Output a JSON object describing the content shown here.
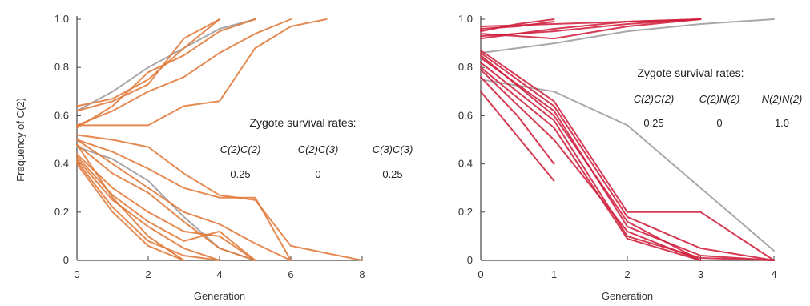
{
  "chart_data": [
    {
      "type": "line",
      "xlabel": "Generation",
      "ylabel": "Frequency of C(2)",
      "xlim": [
        0,
        8
      ],
      "ylim": [
        0,
        1.0
      ],
      "xticks": [
        "0",
        "2",
        "4",
        "6",
        "8"
      ],
      "yticks": [
        "0",
        "0.2",
        "0.4",
        "0.6",
        "0.8",
        "1.0"
      ],
      "colors": {
        "series": "#e07a3a",
        "reference": "#a8a8a8"
      },
      "annotation": {
        "title": "Zygote survival rates:",
        "columns": [
          {
            "label": "C(2)C(2)",
            "value": "0.25"
          },
          {
            "label": "C(2)C(3)",
            "value": "0"
          },
          {
            "label": "C(3)C(3)",
            "value": "0.25"
          }
        ]
      },
      "series": [
        {
          "style": "reference",
          "x": [
            0,
            1,
            2,
            3,
            4,
            5
          ],
          "y": [
            0.62,
            0.7,
            0.8,
            0.88,
            0.96,
            1.0
          ]
        },
        {
          "style": "reference",
          "x": [
            0,
            1,
            2,
            3,
            4,
            5
          ],
          "y": [
            0.47,
            0.42,
            0.33,
            0.18,
            0.05,
            0.0
          ]
        },
        {
          "style": "data",
          "x": [
            0,
            1,
            2,
            3,
            4
          ],
          "y": [
            0.62,
            0.66,
            0.73,
            0.92,
            1.0
          ]
        },
        {
          "style": "data",
          "x": [
            0,
            1,
            2,
            3,
            4
          ],
          "y": [
            0.64,
            0.67,
            0.75,
            0.88,
            1.0
          ]
        },
        {
          "style": "data",
          "x": [
            0,
            1,
            2,
            3,
            4,
            5
          ],
          "y": [
            0.55,
            0.64,
            0.78,
            0.85,
            0.95,
            1.0
          ]
        },
        {
          "style": "data",
          "x": [
            0,
            1,
            2,
            3,
            4,
            5,
            6
          ],
          "y": [
            0.56,
            0.62,
            0.7,
            0.76,
            0.86,
            0.94,
            1.0
          ]
        },
        {
          "style": "data",
          "x": [
            0,
            1,
            2,
            3,
            4,
            5,
            6,
            7
          ],
          "y": [
            0.56,
            0.56,
            0.56,
            0.64,
            0.66,
            0.88,
            0.97,
            1.0
          ]
        },
        {
          "style": "data",
          "x": [
            0,
            1,
            2,
            3,
            4,
            5,
            6,
            7,
            8
          ],
          "y": [
            0.52,
            0.5,
            0.47,
            0.36,
            0.27,
            0.25,
            0.06,
            0.03,
            0.0
          ]
        },
        {
          "style": "data",
          "x": [
            0,
            1,
            2,
            3,
            4,
            5,
            6
          ],
          "y": [
            0.5,
            0.45,
            0.38,
            0.3,
            0.26,
            0.26,
            0.0
          ]
        },
        {
          "style": "data",
          "x": [
            0,
            1,
            2,
            3,
            4,
            5,
            6
          ],
          "y": [
            0.5,
            0.4,
            0.3,
            0.2,
            0.15,
            0.07,
            0.0
          ]
        },
        {
          "style": "data",
          "x": [
            0,
            1,
            2,
            3,
            4,
            5
          ],
          "y": [
            0.48,
            0.36,
            0.28,
            0.16,
            0.05,
            0.0
          ]
        },
        {
          "style": "data",
          "x": [
            0,
            1,
            2,
            3,
            4,
            5
          ],
          "y": [
            0.44,
            0.3,
            0.2,
            0.12,
            0.1,
            0.0
          ]
        },
        {
          "style": "data",
          "x": [
            0,
            1,
            2,
            3,
            4,
            5
          ],
          "y": [
            0.43,
            0.27,
            0.16,
            0.08,
            0.12,
            0.0
          ]
        },
        {
          "style": "data",
          "x": [
            0,
            1,
            2,
            3,
            4
          ],
          "y": [
            0.42,
            0.25,
            0.14,
            0.05,
            0.0
          ]
        },
        {
          "style": "data",
          "x": [
            0,
            1,
            2,
            3,
            4
          ],
          "y": [
            0.41,
            0.22,
            0.08,
            0.02,
            0.0
          ]
        },
        {
          "style": "data",
          "x": [
            0,
            1,
            2,
            3
          ],
          "y": [
            0.4,
            0.2,
            0.06,
            0.0
          ]
        },
        {
          "style": "data",
          "x": [
            0,
            1,
            2,
            3
          ],
          "y": [
            0.48,
            0.26,
            0.1,
            0.0
          ]
        }
      ]
    },
    {
      "type": "line",
      "xlabel": "Generation",
      "ylabel": "",
      "xlim": [
        0,
        4
      ],
      "ylim": [
        0,
        1.0
      ],
      "xticks": [
        "0",
        "1",
        "2",
        "3",
        "4"
      ],
      "yticks": [
        "0",
        "0.2",
        "0.4",
        "0.6",
        "0.8",
        "1.0"
      ],
      "colors": {
        "series": "#d0203e",
        "reference": "#a8a8a8"
      },
      "annotation": {
        "title": "Zygote survival rates:",
        "columns": [
          {
            "label": "C(2)C(2)",
            "value": "0.25"
          },
          {
            "label": "C(2)N(2)",
            "value": "0"
          },
          {
            "label": "N(2)N(2)",
            "value": "1.0"
          }
        ]
      },
      "series": [
        {
          "style": "reference",
          "x": [
            0,
            1,
            2,
            3,
            4
          ],
          "y": [
            0.86,
            0.9,
            0.95,
            0.98,
            1.0
          ]
        },
        {
          "style": "reference",
          "x": [
            0,
            1,
            2,
            3,
            4
          ],
          "y": [
            0.75,
            0.7,
            0.56,
            0.3,
            0.04
          ]
        },
        {
          "style": "data",
          "x": [
            0,
            0.5,
            1
          ],
          "y": [
            0.95,
            0.98,
            1.0
          ]
        },
        {
          "style": "data",
          "x": [
            0,
            0.5,
            1
          ],
          "y": [
            0.96,
            0.97,
            0.99
          ]
        },
        {
          "style": "data",
          "x": [
            0,
            1,
            2,
            3
          ],
          "y": [
            0.93,
            0.95,
            0.98,
            1.0
          ]
        },
        {
          "style": "data",
          "x": [
            0,
            1,
            2,
            3
          ],
          "y": [
            0.92,
            0.96,
            0.99,
            1.0
          ]
        },
        {
          "style": "data",
          "x": [
            0,
            1,
            2,
            3
          ],
          "y": [
            0.94,
            0.92,
            0.97,
            1.0
          ]
        },
        {
          "style": "data",
          "x": [
            0,
            1,
            2,
            3
          ],
          "y": [
            0.97,
            0.98,
            0.99,
            1.0
          ]
        },
        {
          "style": "data",
          "x": [
            0,
            1,
            2,
            3,
            4
          ],
          "y": [
            0.87,
            0.66,
            0.2,
            0.2,
            0.0
          ]
        },
        {
          "style": "data",
          "x": [
            0,
            1,
            2,
            3,
            4
          ],
          "y": [
            0.86,
            0.64,
            0.18,
            0.05,
            0.0
          ]
        },
        {
          "style": "data",
          "x": [
            0,
            1,
            2,
            3,
            4
          ],
          "y": [
            0.84,
            0.62,
            0.14,
            0.02,
            0.0
          ]
        },
        {
          "style": "data",
          "x": [
            0,
            1,
            2,
            3,
            4
          ],
          "y": [
            0.82,
            0.58,
            0.1,
            0.01,
            0.0
          ]
        },
        {
          "style": "data",
          "x": [
            0,
            1,
            2,
            3
          ],
          "y": [
            0.8,
            0.55,
            0.09,
            0.0
          ]
        },
        {
          "style": "data",
          "x": [
            0,
            1,
            2,
            3
          ],
          "y": [
            0.79,
            0.5,
            0.12,
            0.0
          ]
        },
        {
          "style": "data",
          "x": [
            0,
            1,
            2,
            3
          ],
          "y": [
            0.85,
            0.6,
            0.16,
            0.0
          ]
        },
        {
          "style": "data",
          "x": [
            0,
            1
          ],
          "y": [
            0.7,
            0.33
          ]
        },
        {
          "style": "data",
          "x": [
            0,
            0.5,
            1
          ],
          "y": [
            0.76,
            0.6,
            0.4
          ]
        }
      ]
    }
  ]
}
